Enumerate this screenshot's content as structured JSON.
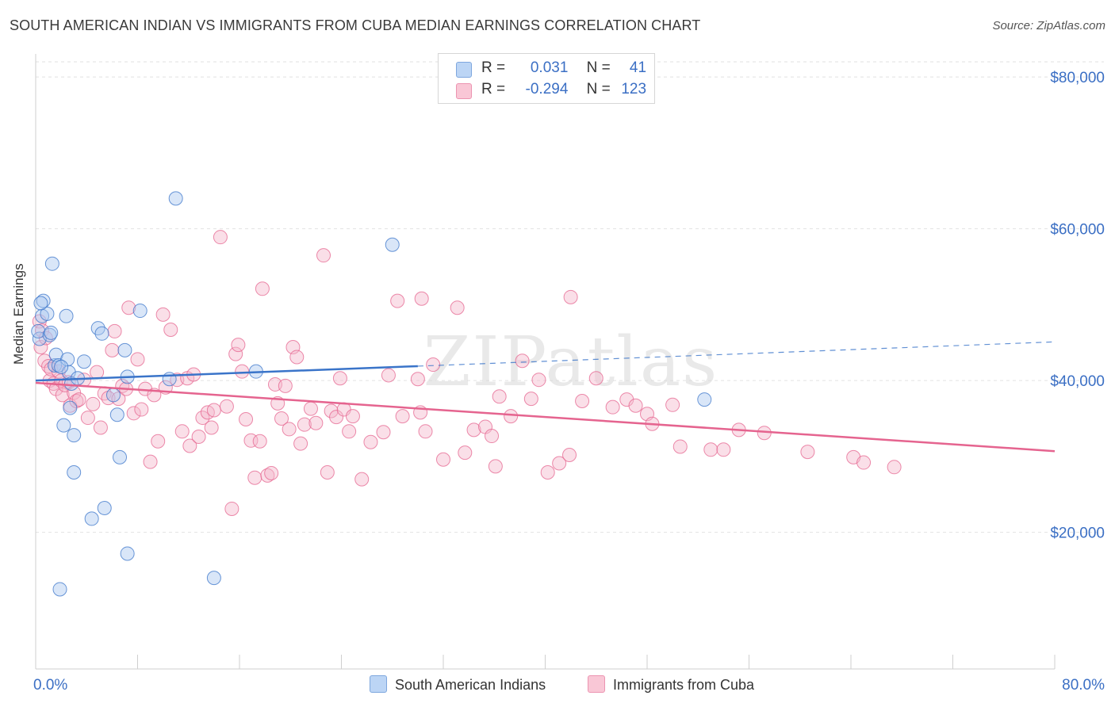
{
  "title": "SOUTH AMERICAN INDIAN VS IMMIGRANTS FROM CUBA MEDIAN EARNINGS CORRELATION CHART",
  "source": "Source: ZipAtlas.com",
  "watermark": "ZIPatlas",
  "legend": {
    "r_label": "R =",
    "n_label": "N =",
    "rows": [
      {
        "r": "0.031",
        "n": "41"
      },
      {
        "r": "-0.294",
        "n": "123"
      }
    ]
  },
  "chart_data": {
    "type": "scatter",
    "title": "SOUTH AMERICAN INDIAN VS IMMIGRANTS FROM CUBA MEDIAN EARNINGS CORRELATION CHART",
    "xlabel": "",
    "ylabel": "Median Earnings",
    "xlim": [
      0,
      80
    ],
    "ylim": [
      2000,
      82000
    ],
    "x_tick_labels": [
      "0.0%",
      "80.0%"
    ],
    "y_ticks": [
      20000,
      40000,
      60000,
      80000
    ],
    "y_tick_labels": [
      "$20,000",
      "$40,000",
      "$60,000",
      "$80,000"
    ],
    "grid": true,
    "colors": {
      "blue": "#3a74c9",
      "pink": "#e5648f",
      "blue_fill": "#aac8ef",
      "pink_fill": "#f5b8cb",
      "axis_label": "#3b6fc4"
    },
    "series": [
      {
        "name": "South American Indians",
        "r": 0.031,
        "n": 41,
        "trend": {
          "x0": 0,
          "y0": 40000,
          "x1": 30,
          "y1": 41900,
          "dash_to_x": 80,
          "dash_to_y": 45100
        },
        "points": [
          [
            0.3,
            45500
          ],
          [
            0.2,
            46500
          ],
          [
            0.5,
            48500
          ],
          [
            0.6,
            50500
          ],
          [
            0.9,
            48800
          ],
          [
            1.1,
            46000
          ],
          [
            1.2,
            46300
          ],
          [
            1.3,
            55400
          ],
          [
            1.5,
            42000
          ],
          [
            1.6,
            43400
          ],
          [
            1.8,
            42000
          ],
          [
            2.2,
            34100
          ],
          [
            2.4,
            48500
          ],
          [
            2.5,
            42800
          ],
          [
            2.6,
            41100
          ],
          [
            2.7,
            36400
          ],
          [
            2.8,
            39600
          ],
          [
            3.0,
            32800
          ],
          [
            3.0,
            27900
          ],
          [
            3.3,
            40300
          ],
          [
            3.8,
            42500
          ],
          [
            4.4,
            21800
          ],
          [
            4.9,
            46900
          ],
          [
            5.2,
            46200
          ],
          [
            5.4,
            23200
          ],
          [
            6.1,
            38100
          ],
          [
            6.4,
            35500
          ],
          [
            6.6,
            29900
          ],
          [
            7.0,
            44000
          ],
          [
            7.2,
            17200
          ],
          [
            7.2,
            40500
          ],
          [
            8.2,
            49200
          ],
          [
            10.5,
            40200
          ],
          [
            11.0,
            64000
          ],
          [
            14.0,
            14000
          ],
          [
            17.3,
            41200
          ],
          [
            28.0,
            57900
          ],
          [
            52.5,
            37500
          ],
          [
            1.9,
            12500
          ],
          [
            0.4,
            50200
          ],
          [
            2.0,
            41800
          ]
        ]
      },
      {
        "name": "Immigrants from Cuba",
        "r": -0.294,
        "n": 123,
        "trend": {
          "x0": 0,
          "y0": 39700,
          "x1": 80,
          "y1": 30700
        },
        "points": [
          [
            0.3,
            47800
          ],
          [
            0.4,
            44400
          ],
          [
            0.5,
            46600
          ],
          [
            0.7,
            42600
          ],
          [
            0.8,
            45600
          ],
          [
            1.0,
            41900
          ],
          [
            1.1,
            40000
          ],
          [
            1.2,
            41500
          ],
          [
            1.4,
            39600
          ],
          [
            1.6,
            38900
          ],
          [
            1.8,
            41200
          ],
          [
            2.0,
            40000
          ],
          [
            2.1,
            38100
          ],
          [
            2.3,
            39400
          ],
          [
            2.6,
            39800
          ],
          [
            2.7,
            36700
          ],
          [
            3.0,
            38400
          ],
          [
            3.2,
            37300
          ],
          [
            3.4,
            37500
          ],
          [
            3.8,
            40100
          ],
          [
            4.1,
            35100
          ],
          [
            4.5,
            36900
          ],
          [
            4.8,
            41100
          ],
          [
            5.1,
            33800
          ],
          [
            5.4,
            38300
          ],
          [
            5.7,
            37700
          ],
          [
            6.0,
            44000
          ],
          [
            6.2,
            46500
          ],
          [
            6.5,
            37600
          ],
          [
            6.8,
            39300
          ],
          [
            7.1,
            38900
          ],
          [
            7.3,
            49600
          ],
          [
            7.7,
            35700
          ],
          [
            8.0,
            42800
          ],
          [
            8.3,
            36200
          ],
          [
            8.6,
            38900
          ],
          [
            9.0,
            29300
          ],
          [
            9.3,
            38100
          ],
          [
            9.6,
            32000
          ],
          [
            10.0,
            48700
          ],
          [
            10.2,
            39100
          ],
          [
            10.6,
            46700
          ],
          [
            11.1,
            40100
          ],
          [
            11.5,
            33300
          ],
          [
            11.9,
            40300
          ],
          [
            12.1,
            31400
          ],
          [
            12.4,
            40800
          ],
          [
            12.8,
            32600
          ],
          [
            13.1,
            35100
          ],
          [
            13.5,
            35800
          ],
          [
            13.8,
            33800
          ],
          [
            14.0,
            36100
          ],
          [
            14.5,
            58900
          ],
          [
            15.0,
            36600
          ],
          [
            15.4,
            23100
          ],
          [
            15.7,
            43500
          ],
          [
            15.9,
            44700
          ],
          [
            16.2,
            41200
          ],
          [
            16.5,
            34900
          ],
          [
            16.9,
            32100
          ],
          [
            17.2,
            27200
          ],
          [
            17.6,
            32000
          ],
          [
            17.8,
            52100
          ],
          [
            18.2,
            27500
          ],
          [
            18.5,
            27800
          ],
          [
            18.8,
            39500
          ],
          [
            19.0,
            37000
          ],
          [
            19.3,
            35000
          ],
          [
            19.6,
            39300
          ],
          [
            19.9,
            33600
          ],
          [
            20.2,
            44400
          ],
          [
            20.5,
            43100
          ],
          [
            20.8,
            31700
          ],
          [
            21.1,
            34200
          ],
          [
            21.6,
            36300
          ],
          [
            22.0,
            34400
          ],
          [
            22.6,
            56500
          ],
          [
            22.9,
            27900
          ],
          [
            23.2,
            36000
          ],
          [
            23.6,
            35200
          ],
          [
            23.9,
            40300
          ],
          [
            24.2,
            36200
          ],
          [
            24.6,
            33300
          ],
          [
            24.9,
            35300
          ],
          [
            25.6,
            27000
          ],
          [
            26.3,
            31900
          ],
          [
            27.3,
            33200
          ],
          [
            27.7,
            40700
          ],
          [
            28.4,
            50500
          ],
          [
            28.8,
            35300
          ],
          [
            30.0,
            40200
          ],
          [
            30.2,
            35800
          ],
          [
            30.3,
            50800
          ],
          [
            30.6,
            33300
          ],
          [
            31.2,
            42100
          ],
          [
            32.0,
            29600
          ],
          [
            33.1,
            49600
          ],
          [
            33.7,
            30500
          ],
          [
            34.4,
            33500
          ],
          [
            35.3,
            33900
          ],
          [
            35.8,
            32700
          ],
          [
            36.1,
            28700
          ],
          [
            36.4,
            37900
          ],
          [
            37.3,
            35300
          ],
          [
            38.2,
            42600
          ],
          [
            38.9,
            37600
          ],
          [
            39.5,
            40100
          ],
          [
            40.2,
            27900
          ],
          [
            41.1,
            29100
          ],
          [
            41.9,
            30200
          ],
          [
            42.0,
            51000
          ],
          [
            42.9,
            37300
          ],
          [
            44.0,
            40300
          ],
          [
            45.3,
            36500
          ],
          [
            46.4,
            37500
          ],
          [
            47.1,
            36700
          ],
          [
            48.0,
            35600
          ],
          [
            48.4,
            34300
          ],
          [
            50.0,
            36800
          ],
          [
            50.6,
            31300
          ],
          [
            53.0,
            30900
          ],
          [
            54.0,
            30900
          ],
          [
            55.2,
            33500
          ],
          [
            57.2,
            33100
          ],
          [
            60.6,
            30600
          ],
          [
            64.2,
            29900
          ],
          [
            65.0,
            29200
          ],
          [
            67.4,
            28600
          ]
        ]
      }
    ]
  },
  "bottom_legend": [
    "South American Indians",
    "Immigrants from Cuba"
  ]
}
